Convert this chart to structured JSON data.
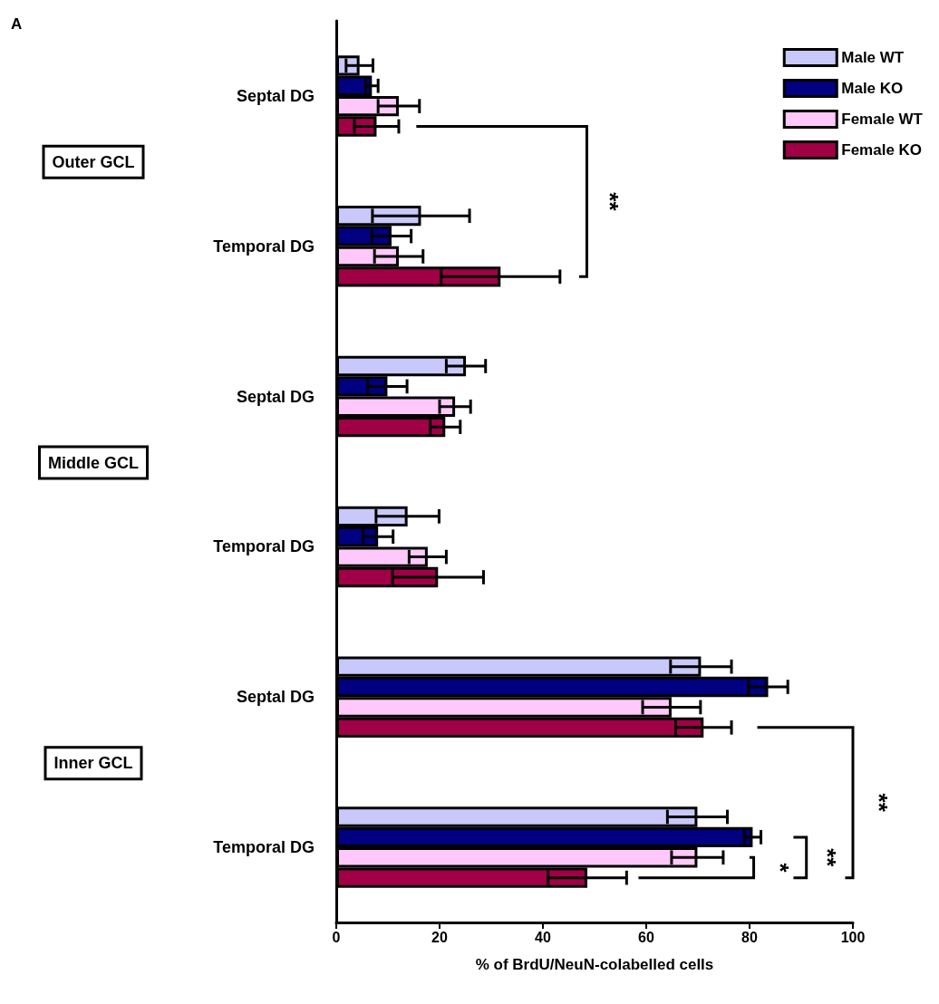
{
  "chart_data": {
    "type": "bar",
    "orientation": "horizontal",
    "xlabel": "% of BrdU/NeuN-colabelled cells",
    "categories": [
      "Septal DG",
      "Temporal DG",
      "Septal DG",
      "Temporal DG",
      "Septal DG",
      "Temporal DG"
    ],
    "series": [
      {
        "name": "Male WT",
        "color": "#c8c8fa",
        "values": [
          4.5,
          16.4,
          25.1,
          13.8,
          70.6,
          69.9
        ],
        "errors": [
          2.6,
          9.4,
          3.8,
          6.1,
          5.9,
          5.8
        ]
      },
      {
        "name": "Male KO",
        "color": "#000080",
        "values": [
          6.9,
          10.7,
          9.9,
          8.1,
          83.6,
          80.6
        ],
        "errors": [
          1.2,
          3.8,
          3.8,
          2.9,
          3.8,
          1.6
        ]
      },
      {
        "name": "Female WT",
        "color": "#ffc8fa",
        "values": [
          12.1,
          12.1,
          23.0,
          17.7,
          64.9,
          69.9
        ],
        "errors": [
          4.0,
          4.7,
          3.0,
          3.6,
          5.6,
          5.0
        ]
      },
      {
        "name": "Female KO",
        "color": "#a00046",
        "values": [
          7.8,
          31.8,
          21.1,
          19.7,
          71.1,
          48.6
        ],
        "errors": [
          4.3,
          11.5,
          2.9,
          8.8,
          5.4,
          7.6
        ]
      }
    ],
    "xlim": [
      0,
      100
    ],
    "xticks": [
      0,
      20,
      40,
      60,
      80,
      100
    ],
    "grid": false,
    "legend": "top right",
    "annotations": [
      "A",
      "Outer GCL",
      "Middle GCL",
      "Inner GCL",
      "**",
      "**",
      "*",
      "**"
    ]
  }
}
